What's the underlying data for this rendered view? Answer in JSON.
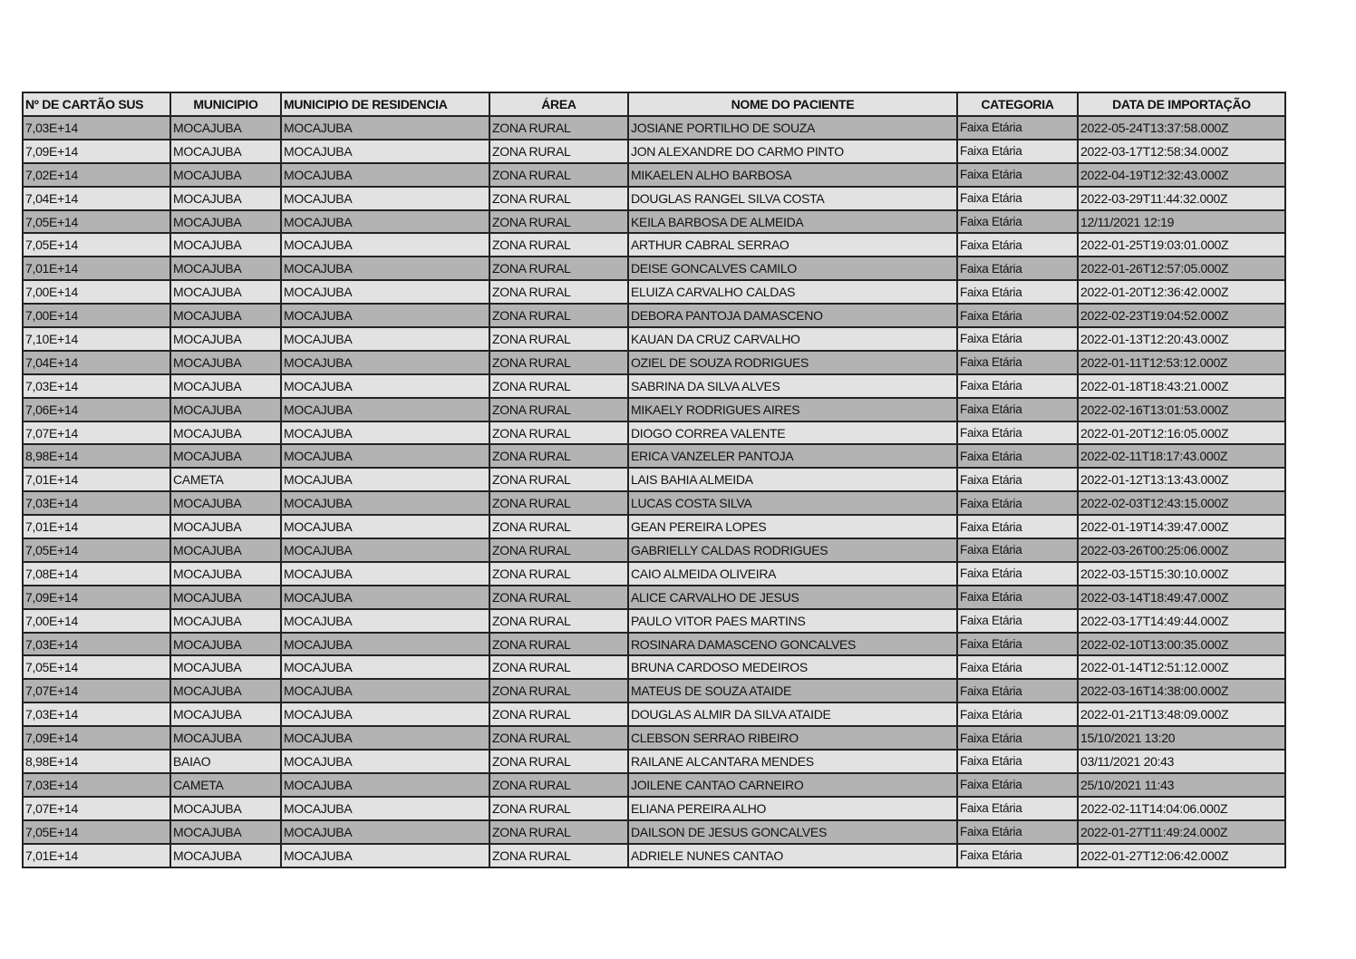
{
  "table": {
    "headers": [
      "Nº DE CARTÃO SUS",
      "MUNICIPIO",
      "MUNICIPIO DE RESIDENCIA",
      "ÁREA",
      "NOME DO PACIENTE",
      "CATEGORIA",
      "DATA DE IMPORTAÇÃO"
    ],
    "rows": [
      [
        "7,03E+14",
        "MOCAJUBA",
        "MOCAJUBA",
        "ZONA RURAL",
        "JOSIANE PORTILHO DE SOUZA",
        "Faixa Etária",
        "2022-05-24T13:37:58.000Z"
      ],
      [
        "7,09E+14",
        "MOCAJUBA",
        "MOCAJUBA",
        "ZONA RURAL",
        "JON ALEXANDRE DO CARMO PINTO",
        "Faixa Etária",
        "2022-03-17T12:58:34.000Z"
      ],
      [
        "7,02E+14",
        "MOCAJUBA",
        "MOCAJUBA",
        "ZONA RURAL",
        "MIKAELEN ALHO BARBOSA",
        "Faixa Etária",
        "2022-04-19T12:32:43.000Z"
      ],
      [
        "7,04E+14",
        "MOCAJUBA",
        "MOCAJUBA",
        "ZONA RURAL",
        "DOUGLAS RANGEL SILVA COSTA",
        "Faixa Etária",
        "2022-03-29T11:44:32.000Z"
      ],
      [
        "7,05E+14",
        "MOCAJUBA",
        "MOCAJUBA",
        "ZONA RURAL",
        "KEILA BARBOSA DE ALMEIDA",
        "Faixa Etária",
        "12/11/2021 12:19"
      ],
      [
        "7,05E+14",
        "MOCAJUBA",
        "MOCAJUBA",
        "ZONA RURAL",
        "ARTHUR CABRAL SERRAO",
        "Faixa Etária",
        "2022-01-25T19:03:01.000Z"
      ],
      [
        "7,01E+14",
        "MOCAJUBA",
        "MOCAJUBA",
        "ZONA RURAL",
        "DEISE GONCALVES CAMILO",
        "Faixa Etária",
        "2022-01-26T12:57:05.000Z"
      ],
      [
        "7,00E+14",
        "MOCAJUBA",
        "MOCAJUBA",
        "ZONA RURAL",
        "ELUIZA CARVALHO CALDAS",
        "Faixa Etária",
        "2022-01-20T12:36:42.000Z"
      ],
      [
        "7,00E+14",
        "MOCAJUBA",
        "MOCAJUBA",
        "ZONA RURAL",
        "DEBORA PANTOJA DAMASCENO",
        "Faixa Etária",
        "2022-02-23T19:04:52.000Z"
      ],
      [
        "7,10E+14",
        "MOCAJUBA",
        "MOCAJUBA",
        "ZONA RURAL",
        "KAUAN DA CRUZ CARVALHO",
        "Faixa Etária",
        "2022-01-13T12:20:43.000Z"
      ],
      [
        "7,04E+14",
        "MOCAJUBA",
        "MOCAJUBA",
        "ZONA RURAL",
        "OZIEL DE SOUZA RODRIGUES",
        "Faixa Etária",
        "2022-01-11T12:53:12.000Z"
      ],
      [
        "7,03E+14",
        "MOCAJUBA",
        "MOCAJUBA",
        "ZONA RURAL",
        "SABRINA DA SILVA ALVES",
        "Faixa Etária",
        "2022-01-18T18:43:21.000Z"
      ],
      [
        "7,06E+14",
        "MOCAJUBA",
        "MOCAJUBA",
        "ZONA RURAL",
        "MIKAELY RODRIGUES AIRES",
        "Faixa Etária",
        "2022-02-16T13:01:53.000Z"
      ],
      [
        "7,07E+14",
        "MOCAJUBA",
        "MOCAJUBA",
        "ZONA RURAL",
        "DIOGO CORREA VALENTE",
        "Faixa Etária",
        "2022-01-20T12:16:05.000Z"
      ],
      [
        "8,98E+14",
        "MOCAJUBA",
        "MOCAJUBA",
        "ZONA RURAL",
        "ERICA VANZELER PANTOJA",
        "Faixa Etária",
        "2022-02-11T18:17:43.000Z"
      ],
      [
        "7,01E+14",
        "CAMETA",
        "MOCAJUBA",
        "ZONA RURAL",
        "LAIS BAHIA ALMEIDA",
        "Faixa Etária",
        "2022-01-12T13:13:43.000Z"
      ],
      [
        "7,03E+14",
        "MOCAJUBA",
        "MOCAJUBA",
        "ZONA RURAL",
        "LUCAS COSTA SILVA",
        "Faixa Etária",
        "2022-02-03T12:43:15.000Z"
      ],
      [
        "7,01E+14",
        "MOCAJUBA",
        "MOCAJUBA",
        "ZONA RURAL",
        "GEAN PEREIRA LOPES",
        "Faixa Etária",
        "2022-01-19T14:39:47.000Z"
      ],
      [
        "7,05E+14",
        "MOCAJUBA",
        "MOCAJUBA",
        "ZONA RURAL",
        "GABRIELLY CALDAS RODRIGUES",
        "Faixa Etária",
        "2022-03-26T00:25:06.000Z"
      ],
      [
        "7,08E+14",
        "MOCAJUBA",
        "MOCAJUBA",
        "ZONA RURAL",
        "CAIO ALMEIDA OLIVEIRA",
        "Faixa Etária",
        "2022-03-15T15:30:10.000Z"
      ],
      [
        "7,09E+14",
        "MOCAJUBA",
        "MOCAJUBA",
        "ZONA RURAL",
        "ALICE CARVALHO DE JESUS",
        "Faixa Etária",
        "2022-03-14T18:49:47.000Z"
      ],
      [
        "7,00E+14",
        "MOCAJUBA",
        "MOCAJUBA",
        "ZONA RURAL",
        "PAULO VITOR PAES MARTINS",
        "Faixa Etária",
        "2022-03-17T14:49:44.000Z"
      ],
      [
        "7,03E+14",
        "MOCAJUBA",
        "MOCAJUBA",
        "ZONA RURAL",
        "ROSINARA DAMASCENO GONCALVES",
        "Faixa Etária",
        "2022-02-10T13:00:35.000Z"
      ],
      [
        "7,05E+14",
        "MOCAJUBA",
        "MOCAJUBA",
        "ZONA RURAL",
        "BRUNA CARDOSO MEDEIROS",
        "Faixa Etária",
        "2022-01-14T12:51:12.000Z"
      ],
      [
        "7,07E+14",
        "MOCAJUBA",
        "MOCAJUBA",
        "ZONA RURAL",
        "MATEUS DE SOUZA ATAIDE",
        "Faixa Etária",
        "2022-03-16T14:38:00.000Z"
      ],
      [
        "7,03E+14",
        "MOCAJUBA",
        "MOCAJUBA",
        "ZONA RURAL",
        "DOUGLAS ALMIR DA SILVA ATAIDE",
        "Faixa Etária",
        "2022-01-21T13:48:09.000Z"
      ],
      [
        "7,09E+14",
        "MOCAJUBA",
        "MOCAJUBA",
        "ZONA RURAL",
        "CLEBSON SERRAO RIBEIRO",
        "Faixa Etária",
        "15/10/2021 13:20"
      ],
      [
        "8,98E+14",
        "BAIAO",
        "MOCAJUBA",
        "ZONA RURAL",
        "RAILANE ALCANTARA MENDES",
        "Faixa Etária",
        "03/11/2021 20:43"
      ],
      [
        "7,03E+14",
        "CAMETA",
        "MOCAJUBA",
        "ZONA RURAL",
        "JOILENE CANTAO CARNEIRO",
        "Faixa Etária",
        "25/10/2021 11:43"
      ],
      [
        "7,07E+14",
        "MOCAJUBA",
        "MOCAJUBA",
        "ZONA RURAL",
        "ELIANA PEREIRA ALHO",
        "Faixa Etária",
        "2022-02-11T14:04:06.000Z"
      ],
      [
        "7,05E+14",
        "MOCAJUBA",
        "MOCAJUBA",
        "ZONA RURAL",
        "DAILSON DE JESUS GONCALVES",
        "Faixa Etária",
        "2022-01-27T11:49:24.000Z"
      ],
      [
        "7,01E+14",
        "MOCAJUBA",
        "MOCAJUBA",
        "ZONA RURAL",
        "ADRIELE NUNES CANTAO",
        "Faixa Etária",
        "2022-01-27T12:06:42.000Z"
      ]
    ],
    "colors": {
      "row_dark": "#b3b3b3",
      "row_light": "#e2e2e2",
      "header": "#e2e2e2",
      "border": "#222222"
    }
  }
}
